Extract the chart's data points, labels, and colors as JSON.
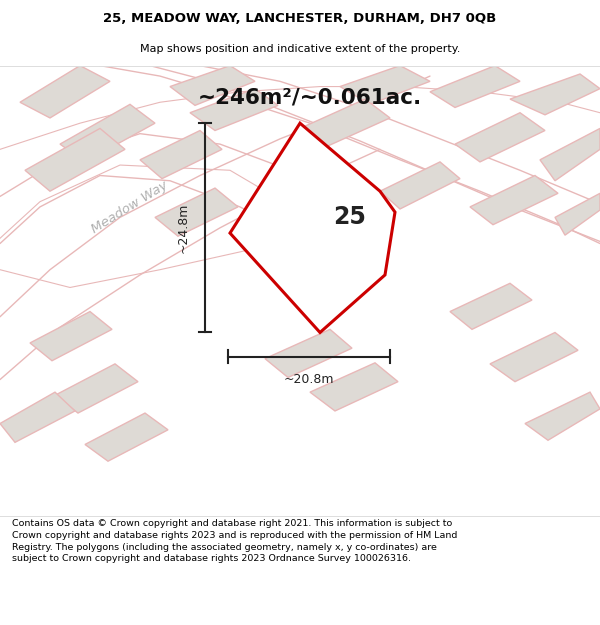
{
  "title_line1": "25, MEADOW WAY, LANCHESTER, DURHAM, DH7 0QB",
  "title_line2": "Map shows position and indicative extent of the property.",
  "area_text": "~246m²/~0.061ac.",
  "label_number": "25",
  "dim_width": "~20.8m",
  "dim_height": "~24.8m",
  "road_label": "Meadow Way",
  "footer_text": "Contains OS data © Crown copyright and database right 2021. This information is subject to Crown copyright and database rights 2023 and is reproduced with the permission of HM Land Registry. The polygons (including the associated geometry, namely x, y co-ordinates) are subject to Crown copyright and database rights 2023 Ordnance Survey 100026316.",
  "map_bg_color": "#f7f4f1",
  "plot_fill_color": "#ffffff",
  "plot_edge_color": "#cc0000",
  "neighbor_fill_color": "#dedad5",
  "neighbor_edge_color": "#e8b8b8",
  "road_line_color": "#e8b8b8",
  "footer_bg_color": "#ffffff",
  "title_bg_color": "#ffffff",
  "dim_color": "#222222",
  "text_color": "#333333"
}
